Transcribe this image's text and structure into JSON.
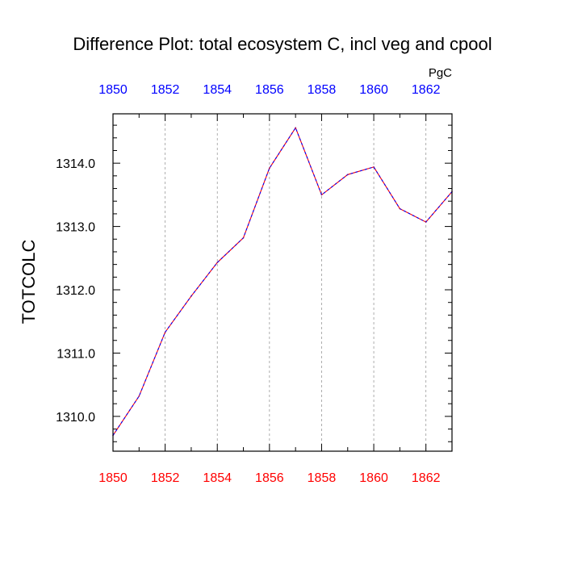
{
  "chart_data": {
    "type": "line",
    "title": "Difference Plot: total ecosystem C, incl veg and cpool",
    "units": "PgC",
    "ylabel": "TOTCOLC",
    "xlabel": "",
    "xlim": [
      1850,
      1863
    ],
    "ylim": [
      1309.45,
      1314.78
    ],
    "x_ticks": [
      1850,
      1852,
      1854,
      1856,
      1858,
      1860,
      1862
    ],
    "x_tick_labels": [
      "1850",
      "1852",
      "1854",
      "1856",
      "1858",
      "1860",
      "1862"
    ],
    "y_ticks": [
      1310.0,
      1311.0,
      1312.0,
      1313.0,
      1314.0
    ],
    "y_tick_labels": [
      "1310.0",
      "1311.0",
      "1312.0",
      "1313.0",
      "1314.0"
    ],
    "grid": true,
    "colors": {
      "bottom_axis_labels": "#ff0000",
      "top_axis_labels": "#0000ff",
      "line_primary": "#ff0000",
      "line_overlay": "#0000ff"
    },
    "series": [
      {
        "name": "difference",
        "x": [
          1850,
          1851,
          1852,
          1853,
          1854,
          1855,
          1856,
          1857,
          1858,
          1859,
          1860,
          1861,
          1862,
          1863
        ],
        "values": [
          1309.7,
          1310.32,
          1311.33,
          1311.9,
          1312.43,
          1312.82,
          1313.92,
          1314.56,
          1313.5,
          1313.82,
          1313.94,
          1313.28,
          1313.07,
          1313.55
        ]
      }
    ]
  }
}
